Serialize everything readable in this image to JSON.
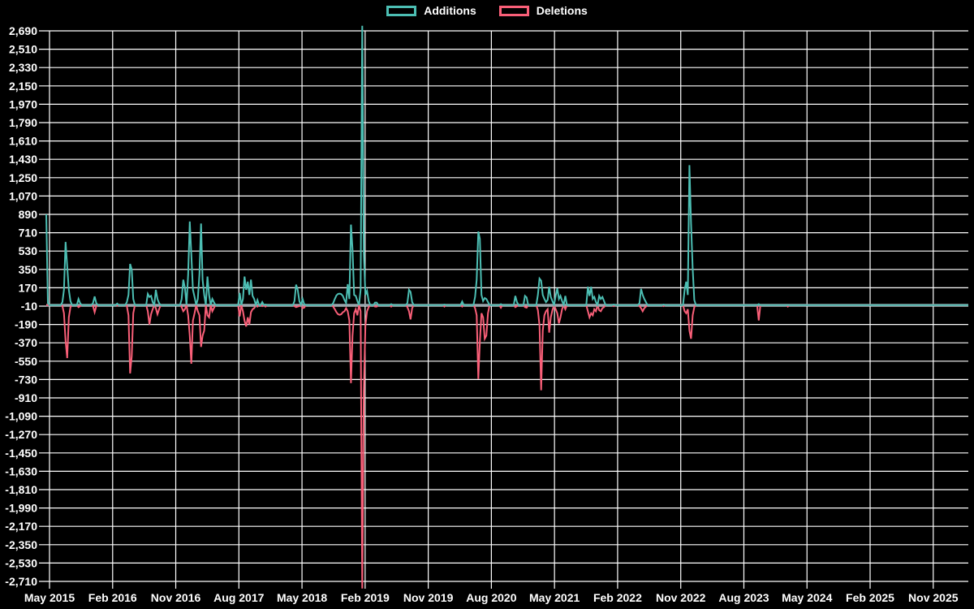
{
  "colors": {
    "background": "#000000",
    "grid": "#ffffff",
    "zero_line": "#98A6AD",
    "text": "#ffffff",
    "additions": "#4CBEB3",
    "deletions": "#F95F78"
  },
  "chart_data": {
    "type": "line",
    "title": "",
    "legend_position": "top",
    "grid": true,
    "x_tick_labels": [
      "May 2015",
      "Feb 2016",
      "Nov 2016",
      "Aug 2017",
      "May 2018",
      "Feb 2019",
      "Nov 2019",
      "Aug 2020",
      "May 2021",
      "Feb 2022",
      "Nov 2022",
      "Aug 2023",
      "May 2024",
      "Feb 2025",
      "Nov 2025"
    ],
    "x_label_interval_months": 9,
    "y_ticks": [
      2690,
      2510,
      2330,
      2150,
      1970,
      1790,
      1610,
      1430,
      1250,
      1070,
      890,
      710,
      530,
      350,
      170,
      -10,
      -190,
      -370,
      -550,
      -730,
      -910,
      -1090,
      -1270,
      -1450,
      -1630,
      -1810,
      -1990,
      -2170,
      -2350,
      -2530,
      -2710
    ],
    "y_tick_labels": [
      "2,690",
      "2,510",
      "2,330",
      "2,150",
      "1,970",
      "1,790",
      "1,610",
      "1,430",
      "1,250",
      "1,070",
      "890",
      "710",
      "530",
      "350",
      "170",
      "-10",
      "-190",
      "-370",
      "-550",
      "-730",
      "-910",
      "-1,090",
      "-1,270",
      "-1,450",
      "-1,630",
      "-1,810",
      "-1,990",
      "-2,170",
      "-2,350",
      "-2,530",
      "-2,710"
    ],
    "ylim": [
      -2780,
      2740
    ],
    "total_weeks": 572,
    "first_gridline_week": 2,
    "weeks_per_label_interval": 39.14,
    "series": [
      {
        "name": "Additions",
        "color": "#4CBEB3"
      },
      {
        "name": "Deletions",
        "color": "#F95F78"
      }
    ],
    "weekly_points_note": "Sparse non-zero weekly values [week_index, additions, deletions]; all other weeks are 0 for both series. Week 0 = week of first x label (May 2015) minus 2 weeks.",
    "weekly_points": [
      [
        0,
        890,
        0
      ],
      [
        1,
        20,
        0
      ],
      [
        10,
        30,
        -10
      ],
      [
        11,
        150,
        -80
      ],
      [
        12,
        620,
        -350
      ],
      [
        13,
        380,
        -520
      ],
      [
        14,
        150,
        -120
      ],
      [
        15,
        40,
        -20
      ],
      [
        20,
        60,
        -20
      ],
      [
        21,
        20,
        -10
      ],
      [
        29,
        20,
        -10
      ],
      [
        30,
        85,
        -70
      ],
      [
        31,
        20,
        -10
      ],
      [
        44,
        15,
        -5
      ],
      [
        50,
        30,
        -10
      ],
      [
        51,
        100,
        -100
      ],
      [
        52,
        404,
        -670
      ],
      [
        53,
        350,
        -500
      ],
      [
        54,
        60,
        -80
      ],
      [
        63,
        110,
        -60
      ],
      [
        64,
        80,
        -190
      ],
      [
        65,
        90,
        -90
      ],
      [
        66,
        30,
        -40
      ],
      [
        68,
        150,
        -30
      ],
      [
        69,
        60,
        -90
      ],
      [
        70,
        20,
        -40
      ],
      [
        84,
        60,
        -20
      ],
      [
        85,
        250,
        -60
      ],
      [
        86,
        170,
        -40
      ],
      [
        88,
        300,
        -100
      ],
      [
        89,
        820,
        -300
      ],
      [
        90,
        500,
        -575
      ],
      [
        91,
        150,
        -150
      ],
      [
        92,
        80,
        -80
      ],
      [
        94,
        60,
        -60
      ],
      [
        95,
        300,
        -100
      ],
      [
        96,
        800,
        -410
      ],
      [
        97,
        250,
        -300
      ],
      [
        98,
        100,
        -250
      ],
      [
        100,
        280,
        -100
      ],
      [
        101,
        100,
        -120
      ],
      [
        103,
        60,
        -60
      ],
      [
        104,
        30,
        -30
      ],
      [
        120,
        120,
        -110
      ],
      [
        122,
        60,
        -60
      ],
      [
        123,
        280,
        -154
      ],
      [
        124,
        150,
        -210
      ],
      [
        125,
        230,
        -120
      ],
      [
        126,
        100,
        -190
      ],
      [
        127,
        250,
        -70
      ],
      [
        128,
        90,
        -40
      ],
      [
        129,
        60,
        -30
      ],
      [
        131,
        50,
        -15
      ],
      [
        134,
        30,
        -10
      ],
      [
        136,
        5,
        -15
      ],
      [
        154,
        40,
        -10
      ],
      [
        155,
        200,
        -20
      ],
      [
        156,
        150,
        -15
      ],
      [
        157,
        40,
        -10
      ],
      [
        159,
        60,
        -30
      ],
      [
        160,
        10,
        -25
      ],
      [
        178,
        20,
        -15
      ],
      [
        179,
        60,
        -40
      ],
      [
        180,
        95,
        -70
      ],
      [
        181,
        110,
        -90
      ],
      [
        182,
        112,
        -95
      ],
      [
        183,
        108,
        -90
      ],
      [
        184,
        90,
        -70
      ],
      [
        185,
        50,
        -60
      ],
      [
        186,
        20,
        -30
      ],
      [
        187,
        205,
        -60
      ],
      [
        188,
        60,
        -150
      ],
      [
        189,
        790,
        -765
      ],
      [
        190,
        550,
        -300
      ],
      [
        191,
        100,
        -80
      ],
      [
        192,
        90,
        -40
      ],
      [
        193,
        40,
        -100
      ],
      [
        195,
        150,
        -60
      ],
      [
        196,
        2740,
        -2780
      ],
      [
        197,
        510,
        -850
      ],
      [
        198,
        100,
        -200
      ],
      [
        199,
        140,
        -60
      ],
      [
        200,
        40,
        -20
      ],
      [
        204,
        25,
        -15
      ],
      [
        205,
        25,
        -15
      ],
      [
        214,
        10,
        -15
      ],
      [
        224,
        20,
        -20
      ],
      [
        225,
        150,
        -60
      ],
      [
        226,
        130,
        -140
      ],
      [
        227,
        30,
        -30
      ],
      [
        247,
        5,
        -15
      ],
      [
        258,
        35,
        -15
      ],
      [
        266,
        80,
        -30
      ],
      [
        267,
        250,
        -100
      ],
      [
        268,
        722,
        -725
      ],
      [
        269,
        650,
        -360
      ],
      [
        270,
        100,
        -80
      ],
      [
        271,
        40,
        -120
      ],
      [
        272,
        70,
        -330
      ],
      [
        273,
        60,
        -300
      ],
      [
        274,
        30,
        -80
      ],
      [
        282,
        10,
        -25
      ],
      [
        291,
        90,
        -20
      ],
      [
        292,
        30,
        -10
      ],
      [
        297,
        90,
        -20
      ],
      [
        298,
        75,
        -25
      ],
      [
        305,
        100,
        -50
      ],
      [
        306,
        260,
        -200
      ],
      [
        307,
        240,
        -835
      ],
      [
        308,
        100,
        -250
      ],
      [
        309,
        60,
        -100
      ],
      [
        310,
        30,
        -60
      ],
      [
        311,
        50,
        -40
      ],
      [
        312,
        180,
        -270
      ],
      [
        313,
        80,
        -120
      ],
      [
        314,
        40,
        -50
      ],
      [
        316,
        90,
        -40
      ],
      [
        317,
        165,
        -80
      ],
      [
        318,
        60,
        -180
      ],
      [
        319,
        90,
        -120
      ],
      [
        320,
        40,
        -40
      ],
      [
        322,
        90,
        -40
      ],
      [
        336,
        180,
        -60
      ],
      [
        337,
        90,
        -120
      ],
      [
        338,
        180,
        -80
      ],
      [
        339,
        60,
        -100
      ],
      [
        340,
        80,
        -40
      ],
      [
        341,
        30,
        -60
      ],
      [
        343,
        90,
        -50
      ],
      [
        344,
        60,
        -60
      ],
      [
        345,
        80,
        -30
      ],
      [
        346,
        40,
        -20
      ],
      [
        352,
        5,
        -10
      ],
      [
        368,
        20,
        -10
      ],
      [
        369,
        160,
        -30
      ],
      [
        370,
        100,
        -60
      ],
      [
        371,
        60,
        -30
      ],
      [
        372,
        30,
        -15
      ],
      [
        383,
        5,
        -10
      ],
      [
        396,
        150,
        -60
      ],
      [
        397,
        230,
        -80
      ],
      [
        398,
        100,
        -40
      ],
      [
        399,
        1373,
        -250
      ],
      [
        400,
        800,
        -330
      ],
      [
        401,
        360,
        -100
      ],
      [
        402,
        50,
        -20
      ],
      [
        442,
        10,
        -150
      ],
      [
        460,
        0,
        -15
      ]
    ]
  }
}
